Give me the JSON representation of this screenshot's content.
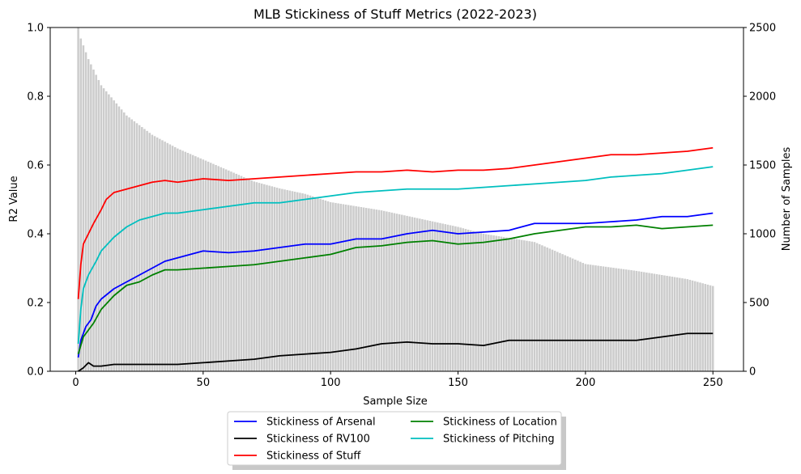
{
  "chart_data": {
    "type": "line",
    "title": "MLB Stickiness of Stuff Metrics (2022-2023)",
    "xlabel": "Sample Size",
    "ylabel": "R2 Value",
    "ylabel_right": "Number of Samples",
    "xlim": [
      -10,
      262
    ],
    "ylim": [
      0,
      1
    ],
    "ylim_right": [
      0,
      2500
    ],
    "x_ticks": [
      0,
      50,
      100,
      150,
      200,
      250
    ],
    "y_ticks": [
      0.0,
      0.2,
      0.4,
      0.6,
      0.8,
      1.0
    ],
    "y_tick_labels": [
      "0.0",
      "0.2",
      "0.4",
      "0.6",
      "0.8",
      "1.0"
    ],
    "y_right_ticks": [
      0,
      500,
      1000,
      1500,
      2000,
      2500
    ],
    "legend_location": "bottom-center",
    "grid": false,
    "bars": {
      "name": "Number of Samples",
      "color": "#cccccc",
      "x_start": 1,
      "x_end": 250,
      "points": [
        [
          1,
          2500
        ],
        [
          2,
          2420
        ],
        [
          5,
          2270
        ],
        [
          10,
          2080
        ],
        [
          20,
          1860
        ],
        [
          30,
          1720
        ],
        [
          40,
          1620
        ],
        [
          50,
          1540
        ],
        [
          60,
          1460
        ],
        [
          70,
          1380
        ],
        [
          80,
          1330
        ],
        [
          90,
          1290
        ],
        [
          100,
          1230
        ],
        [
          120,
          1170
        ],
        [
          140,
          1090
        ],
        [
          150,
          1050
        ],
        [
          160,
          1000
        ],
        [
          180,
          940
        ],
        [
          200,
          780
        ],
        [
          220,
          730
        ],
        [
          240,
          670
        ],
        [
          250,
          620
        ]
      ]
    },
    "series": [
      {
        "name": "Stickiness of Arsenal",
        "color": "#0000ff",
        "points": [
          [
            1,
            0.04
          ],
          [
            2,
            0.09
          ],
          [
            4,
            0.13
          ],
          [
            6,
            0.15
          ],
          [
            8,
            0.19
          ],
          [
            10,
            0.21
          ],
          [
            15,
            0.24
          ],
          [
            20,
            0.26
          ],
          [
            25,
            0.28
          ],
          [
            30,
            0.3
          ],
          [
            35,
            0.32
          ],
          [
            40,
            0.33
          ],
          [
            45,
            0.34
          ],
          [
            50,
            0.35
          ],
          [
            60,
            0.345
          ],
          [
            70,
            0.35
          ],
          [
            80,
            0.36
          ],
          [
            90,
            0.37
          ],
          [
            100,
            0.37
          ],
          [
            110,
            0.385
          ],
          [
            120,
            0.385
          ],
          [
            130,
            0.4
          ],
          [
            140,
            0.41
          ],
          [
            150,
            0.4
          ],
          [
            160,
            0.405
          ],
          [
            170,
            0.41
          ],
          [
            180,
            0.43
          ],
          [
            190,
            0.43
          ],
          [
            200,
            0.43
          ],
          [
            210,
            0.435
          ],
          [
            220,
            0.44
          ],
          [
            230,
            0.45
          ],
          [
            240,
            0.45
          ],
          [
            250,
            0.46
          ]
        ]
      },
      {
        "name": "Stickiness of RV100",
        "color": "#000000",
        "points": [
          [
            1,
            0.0
          ],
          [
            3,
            0.01
          ],
          [
            5,
            0.025
          ],
          [
            7,
            0.015
          ],
          [
            10,
            0.015
          ],
          [
            15,
            0.02
          ],
          [
            20,
            0.02
          ],
          [
            30,
            0.02
          ],
          [
            40,
            0.02
          ],
          [
            50,
            0.025
          ],
          [
            60,
            0.03
          ],
          [
            70,
            0.035
          ],
          [
            80,
            0.045
          ],
          [
            90,
            0.05
          ],
          [
            100,
            0.055
          ],
          [
            110,
            0.065
          ],
          [
            120,
            0.08
          ],
          [
            130,
            0.085
          ],
          [
            140,
            0.08
          ],
          [
            150,
            0.08
          ],
          [
            160,
            0.075
          ],
          [
            170,
            0.09
          ],
          [
            180,
            0.09
          ],
          [
            190,
            0.09
          ],
          [
            200,
            0.09
          ],
          [
            210,
            0.09
          ],
          [
            220,
            0.09
          ],
          [
            230,
            0.1
          ],
          [
            240,
            0.11
          ],
          [
            250,
            0.11
          ]
        ]
      },
      {
        "name": "Stickiness of Stuff",
        "color": "#ff0000",
        "points": [
          [
            1,
            0.21
          ],
          [
            2,
            0.31
          ],
          [
            3,
            0.37
          ],
          [
            5,
            0.4
          ],
          [
            7,
            0.43
          ],
          [
            10,
            0.47
          ],
          [
            12,
            0.5
          ],
          [
            15,
            0.52
          ],
          [
            20,
            0.53
          ],
          [
            25,
            0.54
          ],
          [
            30,
            0.55
          ],
          [
            35,
            0.555
          ],
          [
            40,
            0.55
          ],
          [
            45,
            0.555
          ],
          [
            50,
            0.56
          ],
          [
            60,
            0.555
          ],
          [
            70,
            0.56
          ],
          [
            80,
            0.565
          ],
          [
            90,
            0.57
          ],
          [
            100,
            0.575
          ],
          [
            110,
            0.58
          ],
          [
            120,
            0.58
          ],
          [
            130,
            0.585
          ],
          [
            140,
            0.58
          ],
          [
            150,
            0.585
          ],
          [
            160,
            0.585
          ],
          [
            170,
            0.59
          ],
          [
            180,
            0.6
          ],
          [
            190,
            0.61
          ],
          [
            200,
            0.62
          ],
          [
            210,
            0.63
          ],
          [
            220,
            0.63
          ],
          [
            230,
            0.635
          ],
          [
            240,
            0.64
          ],
          [
            250,
            0.65
          ]
        ]
      },
      {
        "name": "Stickiness of Location",
        "color": "#008000",
        "points": [
          [
            1,
            0.05
          ],
          [
            3,
            0.1
          ],
          [
            5,
            0.12
          ],
          [
            7,
            0.14
          ],
          [
            10,
            0.18
          ],
          [
            15,
            0.22
          ],
          [
            20,
            0.25
          ],
          [
            25,
            0.26
          ],
          [
            30,
            0.28
          ],
          [
            35,
            0.295
          ],
          [
            40,
            0.295
          ],
          [
            50,
            0.3
          ],
          [
            60,
            0.305
          ],
          [
            70,
            0.31
          ],
          [
            80,
            0.32
          ],
          [
            90,
            0.33
          ],
          [
            100,
            0.34
          ],
          [
            110,
            0.36
          ],
          [
            120,
            0.365
          ],
          [
            130,
            0.375
          ],
          [
            140,
            0.38
          ],
          [
            150,
            0.37
          ],
          [
            160,
            0.375
          ],
          [
            170,
            0.385
          ],
          [
            180,
            0.4
          ],
          [
            190,
            0.41
          ],
          [
            200,
            0.42
          ],
          [
            210,
            0.42
          ],
          [
            220,
            0.425
          ],
          [
            230,
            0.415
          ],
          [
            240,
            0.42
          ],
          [
            250,
            0.425
          ]
        ]
      },
      {
        "name": "Stickiness of Pitching",
        "color": "#00bfbf",
        "points": [
          [
            1,
            0.08
          ],
          [
            2,
            0.18
          ],
          [
            3,
            0.24
          ],
          [
            5,
            0.28
          ],
          [
            8,
            0.32
          ],
          [
            10,
            0.35
          ],
          [
            15,
            0.39
          ],
          [
            20,
            0.42
          ],
          [
            25,
            0.44
          ],
          [
            30,
            0.45
          ],
          [
            35,
            0.46
          ],
          [
            40,
            0.46
          ],
          [
            50,
            0.47
          ],
          [
            60,
            0.48
          ],
          [
            70,
            0.49
          ],
          [
            80,
            0.49
          ],
          [
            90,
            0.5
          ],
          [
            100,
            0.51
          ],
          [
            110,
            0.52
          ],
          [
            120,
            0.525
          ],
          [
            130,
            0.53
          ],
          [
            140,
            0.53
          ],
          [
            150,
            0.53
          ],
          [
            160,
            0.535
          ],
          [
            170,
            0.54
          ],
          [
            180,
            0.545
          ],
          [
            190,
            0.55
          ],
          [
            200,
            0.555
          ],
          [
            210,
            0.565
          ],
          [
            220,
            0.57
          ],
          [
            230,
            0.575
          ],
          [
            240,
            0.585
          ],
          [
            250,
            0.595
          ]
        ]
      }
    ]
  }
}
